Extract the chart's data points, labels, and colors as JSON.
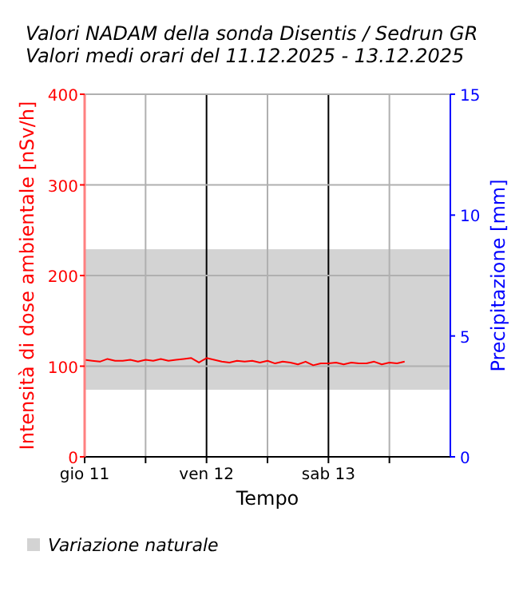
{
  "chart_data": {
    "type": "line",
    "title": "Valori NADAM della sonda Disentis / Sedrun GR",
    "subtitle": "Valori medi orari del 11.12.2025 - 13.12.2025",
    "xlabel": "Tempo",
    "ylabel": "Intensità di dose ambientale [nSv/h]",
    "y2label": "Precipitazione [mm]",
    "x": [
      "2025-12-11T00:00",
      "2025-12-11T01:30",
      "2025-12-11T03:00",
      "2025-12-11T04:30",
      "2025-12-11T06:00",
      "2025-12-11T07:30",
      "2025-12-11T09:00",
      "2025-12-11T10:30",
      "2025-12-11T12:00",
      "2025-12-11T13:30",
      "2025-12-11T15:00",
      "2025-12-11T16:30",
      "2025-12-11T18:00",
      "2025-12-11T19:30",
      "2025-12-11T21:00",
      "2025-12-11T22:30",
      "2025-12-12T00:00",
      "2025-12-12T01:30",
      "2025-12-12T03:00",
      "2025-12-12T04:30",
      "2025-12-12T06:00",
      "2025-12-12T07:30",
      "2025-12-12T09:00",
      "2025-12-12T10:30",
      "2025-12-12T12:00",
      "2025-12-12T13:30",
      "2025-12-12T15:00",
      "2025-12-12T16:30",
      "2025-12-12T18:00",
      "2025-12-12T19:30",
      "2025-12-12T21:00",
      "2025-12-12T22:30",
      "2025-12-13T00:00",
      "2025-12-13T01:30",
      "2025-12-13T03:00",
      "2025-12-13T04:30",
      "2025-12-13T06:00",
      "2025-12-13T07:30",
      "2025-12-13T09:00",
      "2025-12-13T10:30",
      "2025-12-13T12:00",
      "2025-12-13T13:30",
      "2025-12-13T15:00"
    ],
    "series": [
      {
        "color": "#ff0000",
        "values": [
          107,
          106,
          105,
          108,
          106,
          106,
          107,
          105,
          107,
          106,
          108,
          106,
          107,
          108,
          109,
          104,
          109,
          107,
          105,
          104,
          106,
          105,
          106,
          104,
          106,
          103,
          105,
          104,
          102,
          105,
          101,
          103,
          103,
          104,
          102,
          104,
          103,
          103,
          105,
          102,
          104,
          103,
          105
        ]
      }
    ],
    "xlim": [
      "2025-12-11",
      "2025-12-14"
    ],
    "xticks": [
      {
        "value": "2025-12-11",
        "label": "gio 11"
      },
      {
        "value": "2025-12-11T12:00",
        "label": null
      },
      {
        "value": "2025-12-12",
        "label": "ven 12"
      },
      {
        "value": "2025-12-12T12:00",
        "label": null
      },
      {
        "value": "2025-12-13",
        "label": "sab 13"
      },
      {
        "value": "2025-12-13T12:00",
        "label": null
      }
    ],
    "ylim": [
      0,
      400
    ],
    "yticks": [
      0,
      100,
      200,
      300,
      400
    ],
    "y2lim": [
      0,
      15
    ],
    "y2ticks": [
      0,
      5,
      10,
      15
    ],
    "bands": [
      {
        "axis": "y",
        "from": 74,
        "to": 229,
        "label": "Variazione naturale",
        "color": "#d3d3d3"
      }
    ],
    "grid": true,
    "legend": "bottom left"
  }
}
